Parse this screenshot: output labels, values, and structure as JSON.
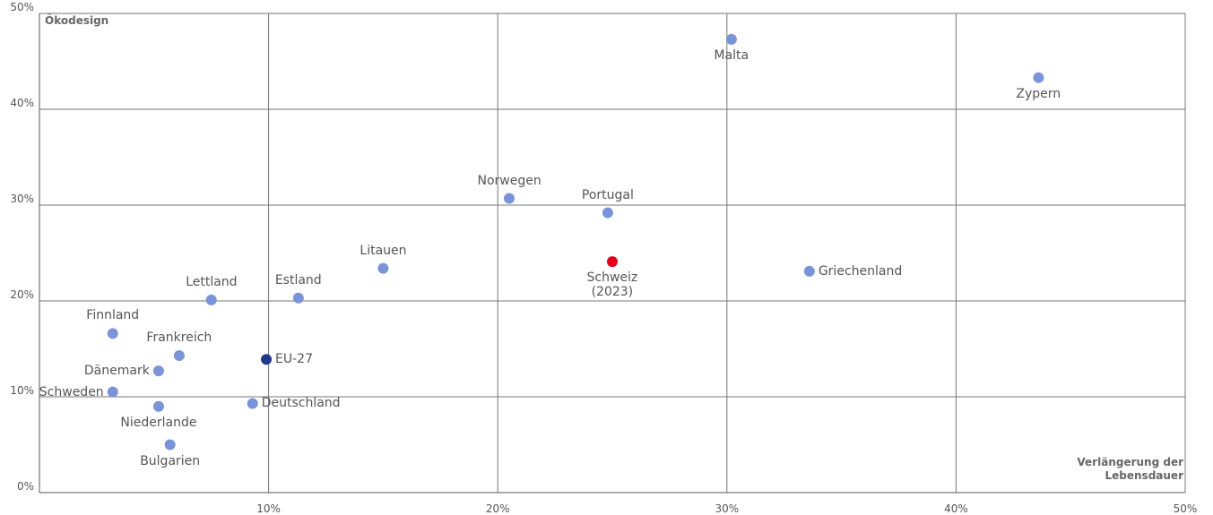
{
  "chart_data": {
    "type": "scatter",
    "y_label": "Ökodesign",
    "x_label": [
      "Verlängerung der",
      "Lebensdauer"
    ],
    "xlim": [
      0,
      50
    ],
    "ylim": [
      0,
      50
    ],
    "xticks": [
      {
        "value": 10,
        "label": "10%"
      },
      {
        "value": 20,
        "label": "20%"
      },
      {
        "value": 30,
        "label": "30%"
      },
      {
        "value": 40,
        "label": "40%"
      },
      {
        "value": 50,
        "label": "50%"
      }
    ],
    "yticks": [
      {
        "value": 0,
        "label": "0%"
      },
      {
        "value": 10,
        "label": "10%"
      },
      {
        "value": 20,
        "label": "20%"
      },
      {
        "value": 30,
        "label": "30%"
      },
      {
        "value": 40,
        "label": "40%"
      },
      {
        "value": 50,
        "label": "50%"
      }
    ],
    "grid": true,
    "points": [
      {
        "label": "Malta",
        "x": 30.2,
        "y": 47.3,
        "color": "#7b93d8"
      },
      {
        "label": "Zypern",
        "x": 43.6,
        "y": 43.3,
        "color": "#7b93d8"
      },
      {
        "label": "Norwegen",
        "x": 20.5,
        "y": 30.7,
        "color": "#7b93d8"
      },
      {
        "label": "Portugal",
        "x": 24.8,
        "y": 29.2,
        "color": "#7b93d8"
      },
      {
        "label": "Schweiz\n(2023)",
        "x": 25.0,
        "y": 24.1,
        "color": "#e2001a"
      },
      {
        "label": "Griechenland",
        "x": 33.6,
        "y": 23.1,
        "color": "#7b93d8"
      },
      {
        "label": "Litauen",
        "x": 15.0,
        "y": 23.4,
        "color": "#7b93d8"
      },
      {
        "label": "Estland",
        "x": 11.3,
        "y": 20.3,
        "color": "#7b93d8"
      },
      {
        "label": "Lettland",
        "x": 7.5,
        "y": 20.1,
        "color": "#7b93d8"
      },
      {
        "label": "Finnland",
        "x": 3.2,
        "y": 16.6,
        "color": "#7b93d8"
      },
      {
        "label": "Frankreich",
        "x": 6.1,
        "y": 14.3,
        "color": "#7b93d8"
      },
      {
        "label": "EU-27",
        "x": 9.9,
        "y": 13.9,
        "color": "#1f3a8a"
      },
      {
        "label": "Dänemark",
        "x": 5.2,
        "y": 12.7,
        "color": "#7b93d8"
      },
      {
        "label": "Schweden",
        "x": 3.2,
        "y": 10.5,
        "color": "#7b93d8"
      },
      {
        "label": "Niederlande",
        "x": 5.2,
        "y": 9.0,
        "color": "#7b93d8"
      },
      {
        "label": "Deutschland",
        "x": 9.3,
        "y": 9.3,
        "color": "#7b93d8"
      },
      {
        "label": "Bulgarien",
        "x": 5.7,
        "y": 5.0,
        "color": "#7b93d8"
      }
    ]
  }
}
